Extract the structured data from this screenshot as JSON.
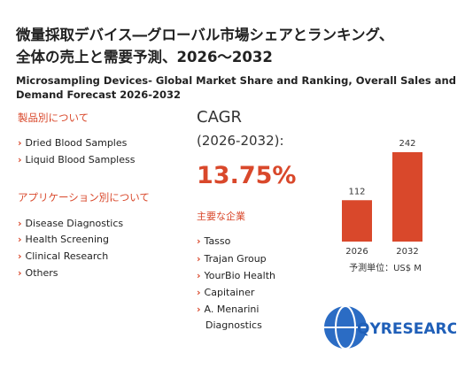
{
  "header": {
    "title_line1": "微量採取デバイス―グローバル市場シェアとランキング、",
    "title_line2": "全体の売上と需要予測、2026～2032",
    "subtitle_line1": "Microsampling Devices- Global Market Share and Ranking, Overall Sales and",
    "subtitle_line2": "Demand Forecast 2026-2032"
  },
  "product_section": {
    "heading": "製品別について",
    "items": [
      "Dried Blood Samples",
      "Liquid Blood Sampless"
    ]
  },
  "application_section": {
    "heading": "アプリケーション別について",
    "items": [
      "Disease Diagnostics",
      "Health Screening",
      "Clinical Research",
      "Others"
    ]
  },
  "cagr": {
    "label": "CAGR",
    "period": "(2026-2032):",
    "value": "13.75%"
  },
  "companies": {
    "heading": "主要な企業",
    "items": [
      "Tasso",
      "Trajan Group",
      "YourBio Health",
      "Capitainer",
      "A. Menarini",
      "Diagnostics"
    ]
  },
  "chart_data": {
    "type": "bar",
    "categories": [
      "2026",
      "2032"
    ],
    "values": [
      112,
      242
    ],
    "color": "#d9482b",
    "unit": "予測単位：US$ M"
  },
  "logo": "QYRESEARCH"
}
